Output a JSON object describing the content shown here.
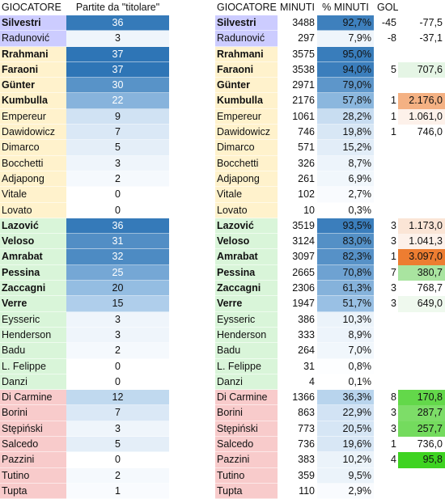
{
  "left_table": {
    "headers": [
      "GIOCATORE",
      "Partite da \"titolare\""
    ],
    "rows": [
      {
        "name": "Silvestri",
        "starts": "36",
        "bold": true,
        "group": "gk",
        "scale": 0.97
      },
      {
        "name": "Radunović",
        "starts": "3",
        "bold": false,
        "group": "gk",
        "scale": 0.08
      },
      {
        "name": "Rrahmani",
        "starts": "37",
        "bold": true,
        "group": "def",
        "scale": 1.0
      },
      {
        "name": "Faraoni",
        "starts": "37",
        "bold": true,
        "group": "def",
        "scale": 1.0
      },
      {
        "name": "Günter",
        "starts": "30",
        "bold": true,
        "group": "def",
        "scale": 0.81
      },
      {
        "name": "Kumbulla",
        "starts": "22",
        "bold": true,
        "group": "def",
        "scale": 0.6
      },
      {
        "name": "Empereur",
        "starts": "9",
        "bold": false,
        "group": "def",
        "scale": 0.24
      },
      {
        "name": "Dawidowicz",
        "starts": "7",
        "bold": false,
        "group": "def",
        "scale": 0.19
      },
      {
        "name": "Dimarco",
        "starts": "5",
        "bold": false,
        "group": "def",
        "scale": 0.14
      },
      {
        "name": "Bocchetti",
        "starts": "3",
        "bold": false,
        "group": "def",
        "scale": 0.08
      },
      {
        "name": "Adjapong",
        "starts": "2",
        "bold": false,
        "group": "def",
        "scale": 0.05
      },
      {
        "name": "Vitale",
        "starts": "0",
        "bold": false,
        "group": "def",
        "scale": 0.0
      },
      {
        "name": "Lovato",
        "starts": "0",
        "bold": false,
        "group": "def",
        "scale": 0.0
      },
      {
        "name": "Lazović",
        "starts": "36",
        "bold": true,
        "group": "mid",
        "scale": 0.97
      },
      {
        "name": "Veloso",
        "starts": "31",
        "bold": true,
        "group": "mid",
        "scale": 0.84
      },
      {
        "name": "Amrabat",
        "starts": "32",
        "bold": true,
        "group": "mid",
        "scale": 0.86
      },
      {
        "name": "Pessina",
        "starts": "25",
        "bold": true,
        "group": "mid",
        "scale": 0.68
      },
      {
        "name": "Zaccagni",
        "starts": "20",
        "bold": true,
        "group": "mid",
        "scale": 0.54
      },
      {
        "name": "Verre",
        "starts": "15",
        "bold": true,
        "group": "mid",
        "scale": 0.41
      },
      {
        "name": "Eysseric",
        "starts": "3",
        "bold": false,
        "group": "mid",
        "scale": 0.08
      },
      {
        "name": "Henderson",
        "starts": "3",
        "bold": false,
        "group": "mid",
        "scale": 0.08
      },
      {
        "name": "Badu",
        "starts": "2",
        "bold": false,
        "group": "mid",
        "scale": 0.05
      },
      {
        "name": "L. Felippe",
        "starts": "0",
        "bold": false,
        "group": "mid",
        "scale": 0.0
      },
      {
        "name": "Danzi",
        "starts": "0",
        "bold": false,
        "group": "mid",
        "scale": 0.0
      },
      {
        "name": "Di Carmine",
        "starts": "12",
        "bold": false,
        "group": "fwd",
        "scale": 0.32
      },
      {
        "name": "Borini",
        "starts": "7",
        "bold": false,
        "group": "fwd",
        "scale": 0.19
      },
      {
        "name": "Stępiński",
        "starts": "3",
        "bold": false,
        "group": "fwd",
        "scale": 0.08
      },
      {
        "name": "Salcedo",
        "starts": "5",
        "bold": false,
        "group": "fwd",
        "scale": 0.14
      },
      {
        "name": "Pazzini",
        "starts": "0",
        "bold": false,
        "group": "fwd",
        "scale": 0.0
      },
      {
        "name": "Tutino",
        "starts": "2",
        "bold": false,
        "group": "fwd",
        "scale": 0.05
      },
      {
        "name": "Tupta",
        "starts": "1",
        "bold": false,
        "group": "fwd",
        "scale": 0.03
      }
    ]
  },
  "right_table": {
    "headers": [
      "GIOCATORE",
      "MINUTI",
      "% MINUTI",
      "GOL",
      ""
    ],
    "rows": [
      {
        "name": "Silvestri",
        "minutes": "3488",
        "pct": "92,7%",
        "gol": "-45",
        "val": "-77,5",
        "val_color": "",
        "bold": true,
        "group": "gk",
        "scale": 0.93
      },
      {
        "name": "Radunović",
        "minutes": "297",
        "pct": "7,9%",
        "gol": "-8",
        "val": "-37,1",
        "val_color": "",
        "bold": false,
        "group": "gk",
        "scale": 0.08
      },
      {
        "name": "Rrahmani",
        "minutes": "3575",
        "pct": "95,0%",
        "gol": "",
        "val": "",
        "val_color": "",
        "bold": true,
        "group": "def",
        "scale": 0.95
      },
      {
        "name": "Faraoni",
        "minutes": "3538",
        "pct": "94,0%",
        "gol": "5",
        "val": "707,6",
        "val_color": "#e5f5e5",
        "bold": true,
        "group": "def",
        "scale": 0.94
      },
      {
        "name": "Günter",
        "minutes": "2971",
        "pct": "79,0%",
        "gol": "",
        "val": "",
        "val_color": "",
        "bold": true,
        "group": "def",
        "scale": 0.79
      },
      {
        "name": "Kumbulla",
        "minutes": "2176",
        "pct": "57,8%",
        "gol": "1",
        "val": "2.176,0",
        "val_color": "#f4b183",
        "bold": true,
        "group": "def",
        "scale": 0.58
      },
      {
        "name": "Empereur",
        "minutes": "1061",
        "pct": "28,2%",
        "gol": "1",
        "val": "1.061,0",
        "val_color": "#fdf1ea",
        "bold": false,
        "group": "def",
        "scale": 0.28
      },
      {
        "name": "Dawidowicz",
        "minutes": "746",
        "pct": "19,8%",
        "gol": "1",
        "val": "746,0",
        "val_color": "",
        "bold": false,
        "group": "def",
        "scale": 0.2
      },
      {
        "name": "Dimarco",
        "minutes": "571",
        "pct": "15,2%",
        "gol": "",
        "val": "",
        "val_color": "",
        "bold": false,
        "group": "def",
        "scale": 0.15
      },
      {
        "name": "Bocchetti",
        "minutes": "326",
        "pct": "8,7%",
        "gol": "",
        "val": "",
        "val_color": "",
        "bold": false,
        "group": "def",
        "scale": 0.09
      },
      {
        "name": "Adjapong",
        "minutes": "261",
        "pct": "6,9%",
        "gol": "",
        "val": "",
        "val_color": "",
        "bold": false,
        "group": "def",
        "scale": 0.07
      },
      {
        "name": "Vitale",
        "minutes": "102",
        "pct": "2,7%",
        "gol": "",
        "val": "",
        "val_color": "",
        "bold": false,
        "group": "def",
        "scale": 0.03
      },
      {
        "name": "Lovato",
        "minutes": "10",
        "pct": "0,3%",
        "gol": "",
        "val": "",
        "val_color": "",
        "bold": false,
        "group": "def",
        "scale": 0.0
      },
      {
        "name": "Lazović",
        "minutes": "3519",
        "pct": "93,5%",
        "gol": "3",
        "val": "1.173,0",
        "val_color": "#fbe5d6",
        "bold": true,
        "group": "mid",
        "scale": 0.94
      },
      {
        "name": "Veloso",
        "minutes": "3124",
        "pct": "83,0%",
        "gol": "3",
        "val": "1.041,3",
        "val_color": "#fdf1ea",
        "bold": true,
        "group": "mid",
        "scale": 0.83
      },
      {
        "name": "Amrabat",
        "minutes": "3097",
        "pct": "82,3%",
        "gol": "1",
        "val": "3.097,0",
        "val_color": "#ed7d31",
        "bold": true,
        "group": "mid",
        "scale": 0.82
      },
      {
        "name": "Pessina",
        "minutes": "2665",
        "pct": "70,8%",
        "gol": "7",
        "val": "380,7",
        "val_color": "#a9e4a0",
        "bold": true,
        "group": "mid",
        "scale": 0.71
      },
      {
        "name": "Zaccagni",
        "minutes": "2306",
        "pct": "61,3%",
        "gol": "3",
        "val": "768,7",
        "val_color": "",
        "bold": true,
        "group": "mid",
        "scale": 0.61
      },
      {
        "name": "Verre",
        "minutes": "1947",
        "pct": "51,7%",
        "gol": "3",
        "val": "649,0",
        "val_color": "#eff9ee",
        "bold": true,
        "group": "mid",
        "scale": 0.52
      },
      {
        "name": "Eysseric",
        "minutes": "386",
        "pct": "10,3%",
        "gol": "",
        "val": "",
        "val_color": "",
        "bold": false,
        "group": "mid",
        "scale": 0.1
      },
      {
        "name": "Henderson",
        "minutes": "333",
        "pct": "8,9%",
        "gol": "",
        "val": "",
        "val_color": "",
        "bold": false,
        "group": "mid",
        "scale": 0.09
      },
      {
        "name": "Badu",
        "minutes": "264",
        "pct": "7,0%",
        "gol": "",
        "val": "",
        "val_color": "",
        "bold": false,
        "group": "mid",
        "scale": 0.07
      },
      {
        "name": "L. Felippe",
        "minutes": "31",
        "pct": "0,8%",
        "gol": "",
        "val": "",
        "val_color": "",
        "bold": false,
        "group": "mid",
        "scale": 0.01
      },
      {
        "name": "Danzi",
        "minutes": "4",
        "pct": "0,1%",
        "gol": "",
        "val": "",
        "val_color": "",
        "bold": false,
        "group": "mid",
        "scale": 0.0
      },
      {
        "name": "Di Carmine",
        "minutes": "1366",
        "pct": "36,3%",
        "gol": "8",
        "val": "170,8",
        "val_color": "#63d84a",
        "bold": false,
        "group": "fwd",
        "scale": 0.36
      },
      {
        "name": "Borini",
        "minutes": "863",
        "pct": "22,9%",
        "gol": "3",
        "val": "287,7",
        "val_color": "#7ddd68",
        "bold": false,
        "group": "fwd",
        "scale": 0.23
      },
      {
        "name": "Stępiński",
        "minutes": "773",
        "pct": "20,5%",
        "gol": "3",
        "val": "257,7",
        "val_color": "#74db5e",
        "bold": false,
        "group": "fwd",
        "scale": 0.21
      },
      {
        "name": "Salcedo",
        "minutes": "736",
        "pct": "19,6%",
        "gol": "1",
        "val": "736,0",
        "val_color": "",
        "bold": false,
        "group": "fwd",
        "scale": 0.2
      },
      {
        "name": "Pazzini",
        "minutes": "383",
        "pct": "10,2%",
        "gol": "4",
        "val": "95,8",
        "val_color": "#3ed321",
        "bold": false,
        "group": "fwd",
        "scale": 0.1
      },
      {
        "name": "Tutino",
        "minutes": "359",
        "pct": "9,5%",
        "gol": "",
        "val": "",
        "val_color": "",
        "bold": false,
        "group": "fwd",
        "scale": 0.1
      },
      {
        "name": "Tupta",
        "minutes": "110",
        "pct": "2,9%",
        "gol": "",
        "val": "",
        "val_color": "",
        "bold": false,
        "group": "fwd",
        "scale": 0.03
      }
    ]
  },
  "colors": {
    "gk": "#ccccff",
    "def": "#fff2cc",
    "mid": "#d9f5d9",
    "fwd": "#f8cbcb",
    "bar_light": "#ffffff",
    "bar_mid": "#9dc3e6",
    "bar_dark": "#2e75b6"
  }
}
